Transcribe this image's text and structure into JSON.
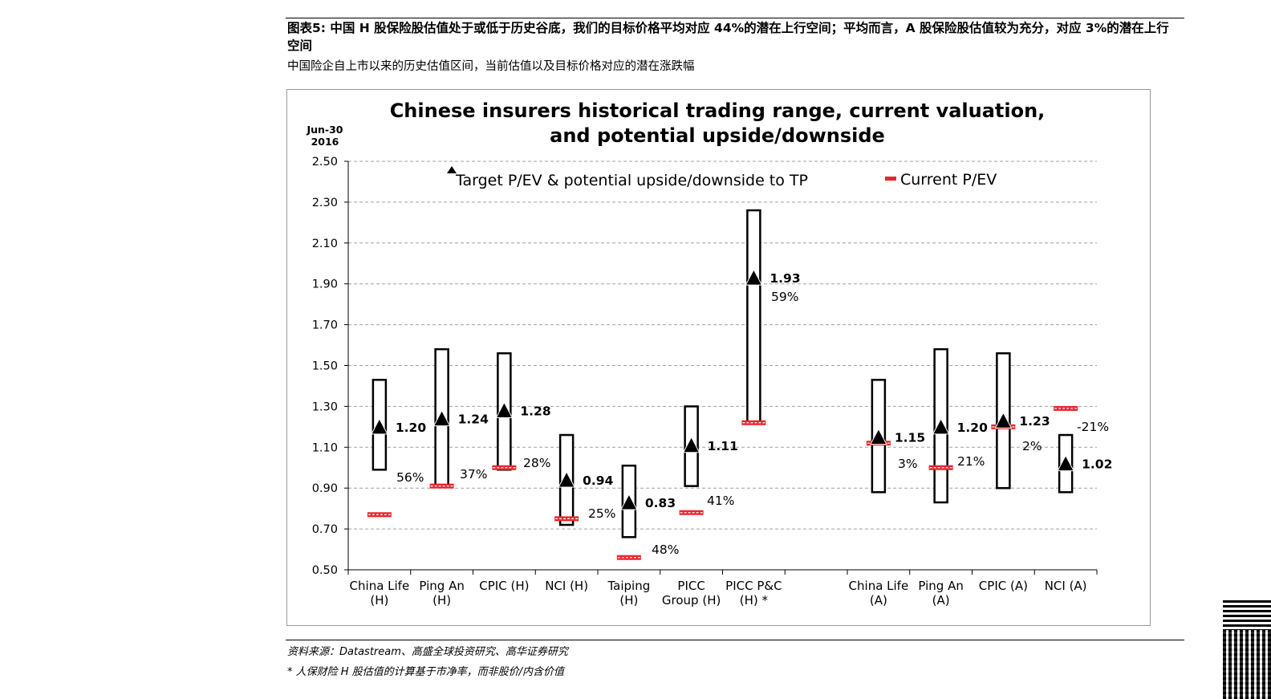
{
  "caption": "图表5: 中国 H 股保险股估值处于或低于历史谷底，我们的目标价格平均对应 44%的潜在上行空间；平均而言，A 股保险股估值较为充分，对应 3%的潜在上行空间",
  "subcaption": "中国险企自上市以来的历史估值区间，当前估值以及目标价格对应的潜在涨跌幅",
  "source": "资料来源：Datastream、高盛全球投资研究、高华证券研究",
  "footnote": "* 人保财险 H 股估值的计算基于市净率，而非股价/内含价值",
  "chart_data": {
    "type": "range-marker",
    "title_line1": "Chinese insurers historical trading range, current valuation,",
    "title_line2": "and potential upside/downside",
    "date_label_line1": "Jun-30",
    "date_label_line2": "2016",
    "ylim": [
      0.5,
      2.5
    ],
    "yticks": [
      "0.50",
      "0.70",
      "0.90",
      "1.10",
      "1.30",
      "1.50",
      "1.70",
      "1.90",
      "2.10",
      "2.30",
      "2.50"
    ],
    "legend": {
      "target_label": "Target P/EV & potential upside/downside to TP",
      "current_label": "Current P/EV"
    },
    "colors": {
      "current": "#e8262b",
      "box": "#000000",
      "grid": "#a0a0a0"
    },
    "categories": [
      {
        "label1": "China Life",
        "label2": "(H)",
        "slot": 0,
        "low": 0.99,
        "high": 1.43,
        "target": 1.2,
        "target_text": "1.20",
        "current": 0.77,
        "pct": "56%"
      },
      {
        "label1": "Ping An",
        "label2": "(H)",
        "slot": 1,
        "low": 0.91,
        "high": 1.58,
        "target": 1.24,
        "target_text": "1.24",
        "current": 0.91,
        "pct": "37%"
      },
      {
        "label1": "CPIC (H)",
        "label2": "",
        "slot": 2,
        "low": 0.99,
        "high": 1.56,
        "target": 1.28,
        "target_text": "1.28",
        "current": 1.0,
        "pct": "28%"
      },
      {
        "label1": "NCI (H)",
        "label2": "",
        "slot": 3,
        "low": 0.72,
        "high": 1.16,
        "target": 0.94,
        "target_text": "0.94",
        "current": 0.75,
        "pct": "25%"
      },
      {
        "label1": "Taiping",
        "label2": "(H)",
        "slot": 4,
        "low": 0.66,
        "high": 1.01,
        "target": 0.83,
        "target_text": "0.83",
        "current": 0.56,
        "pct": "48%"
      },
      {
        "label1": "PICC",
        "label2": "Group (H)",
        "slot": 5,
        "low": 0.91,
        "high": 1.3,
        "target": 1.11,
        "target_text": "1.11",
        "current": 0.78,
        "pct": "41%"
      },
      {
        "label1": "PICC P&C",
        "label2": "(H) *",
        "slot": 6,
        "low": 1.22,
        "high": 2.26,
        "target": 1.93,
        "target_text": "1.93",
        "current": 1.22,
        "pct": "59%"
      },
      {
        "label1": "China Life",
        "label2": "(A)",
        "slot": 8,
        "low": 0.88,
        "high": 1.43,
        "target": 1.15,
        "target_text": "1.15",
        "current": 1.12,
        "pct": "3%"
      },
      {
        "label1": "Ping An",
        "label2": "(A)",
        "slot": 9,
        "low": 0.83,
        "high": 1.58,
        "target": 1.2,
        "target_text": "1.20",
        "current": 1.0,
        "pct": "21%"
      },
      {
        "label1": "CPIC (A)",
        "label2": "",
        "slot": 10,
        "low": 0.9,
        "high": 1.56,
        "target": 1.23,
        "target_text": "1.23",
        "current": 1.2,
        "pct": "2%"
      },
      {
        "label1": "NCI (A)",
        "label2": "",
        "slot": 11,
        "low": 0.88,
        "high": 1.16,
        "target": 1.02,
        "target_text": "1.02",
        "current": 1.29,
        "pct": "-21%"
      }
    ]
  }
}
